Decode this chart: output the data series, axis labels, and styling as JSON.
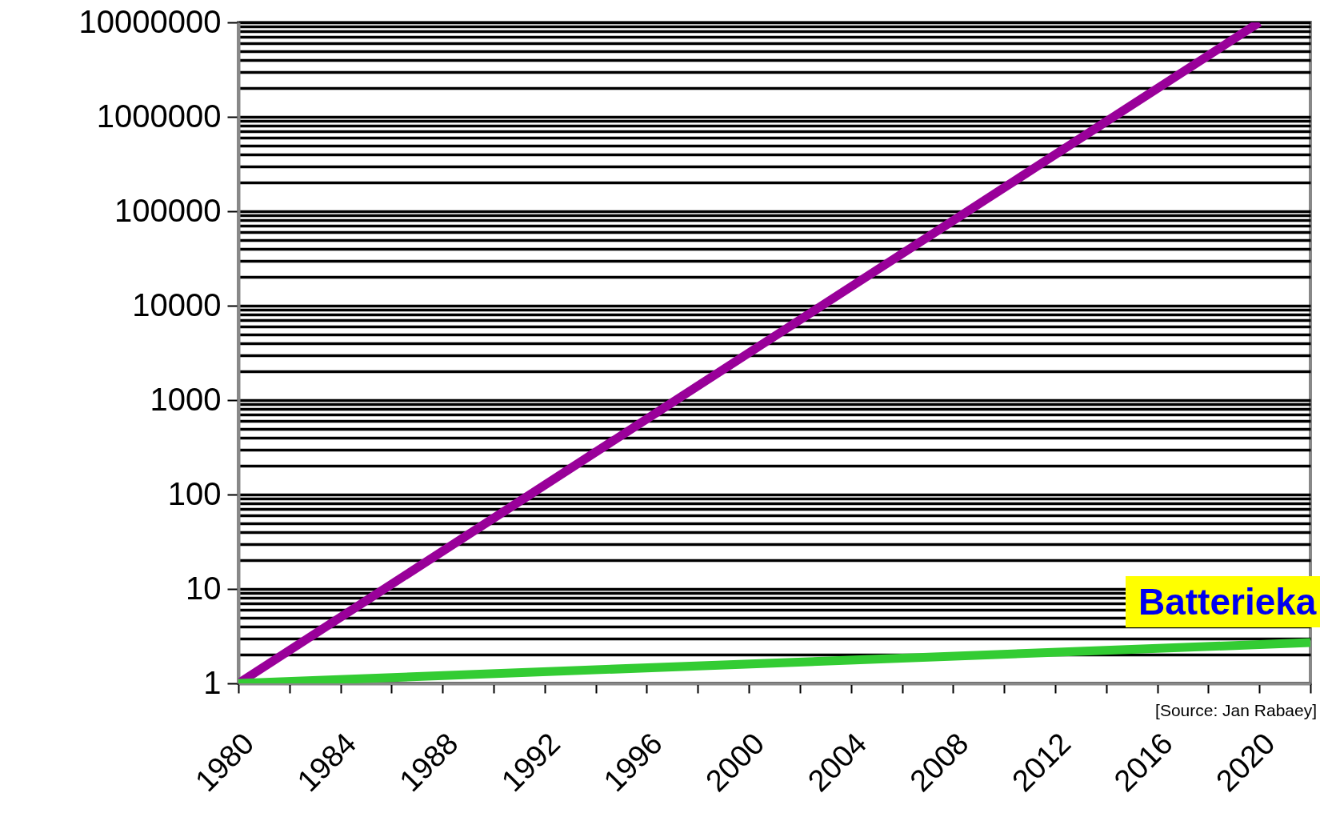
{
  "chart_data": {
    "type": "line",
    "log": "y",
    "grid": "y",
    "x": [
      1980,
      2020
    ],
    "series": [
      {
        "color": "#990099",
        "values": [
          1,
          10000000
        ]
      },
      {
        "name": "Batterieka",
        "color": "#33cc33",
        "x": [
          1980,
          2022
        ],
        "values": [
          1,
          2.7
        ]
      }
    ],
    "xlim": [
      1980,
      2022
    ],
    "xticks": [
      1980,
      {
        "value": 1982,
        "label": null
      },
      1984,
      {
        "value": 1986,
        "label": null
      },
      1988,
      {
        "value": 1990,
        "label": null
      },
      1992,
      {
        "value": 1994,
        "label": null
      },
      1996,
      {
        "value": 1998,
        "label": null
      },
      2000,
      {
        "value": 2002,
        "label": null
      },
      2004,
      {
        "value": 2006,
        "label": null
      },
      2008,
      {
        "value": 2010,
        "label": null
      },
      2012,
      {
        "value": 2014,
        "label": null
      },
      2016,
      {
        "value": 2018,
        "label": null
      },
      2020,
      {
        "value": 2022,
        "label": null
      }
    ],
    "ylim": [
      1,
      10000000
    ],
    "yticks": [
      1,
      {
        "value": 2,
        "label": null
      },
      {
        "value": 3,
        "label": null
      },
      {
        "value": 4,
        "label": null
      },
      {
        "value": 5,
        "label": null
      },
      {
        "value": 6,
        "label": null
      },
      {
        "value": 7,
        "label": null
      },
      {
        "value": 8,
        "label": null
      },
      {
        "value": 9,
        "label": null
      },
      10,
      {
        "value": 20,
        "label": null
      },
      {
        "value": 30,
        "label": null
      },
      {
        "value": 40,
        "label": null
      },
      {
        "value": 50,
        "label": null
      },
      {
        "value": 60,
        "label": null
      },
      {
        "value": 70,
        "label": null
      },
      {
        "value": 80,
        "label": null
      },
      {
        "value": 90,
        "label": null
      },
      100,
      {
        "value": 200,
        "label": null
      },
      {
        "value": 300,
        "label": null
      },
      {
        "value": 400,
        "label": null
      },
      {
        "value": 500,
        "label": null
      },
      {
        "value": 600,
        "label": null
      },
      {
        "value": 700,
        "label": null
      },
      {
        "value": 800,
        "label": null
      },
      {
        "value": 900,
        "label": null
      },
      1000,
      {
        "value": 2000,
        "label": null
      },
      {
        "value": 3000,
        "label": null
      },
      {
        "value": 4000,
        "label": null
      },
      {
        "value": 5000,
        "label": null
      },
      {
        "value": 6000,
        "label": null
      },
      {
        "value": 7000,
        "label": null
      },
      {
        "value": 8000,
        "label": null
      },
      {
        "value": 9000,
        "label": null
      },
      10000,
      {
        "value": 20000,
        "label": null
      },
      {
        "value": 30000,
        "label": null
      },
      {
        "value": 40000,
        "label": null
      },
      {
        "value": 50000,
        "label": null
      },
      {
        "value": 60000,
        "label": null
      },
      {
        "value": 70000,
        "label": null
      },
      {
        "value": 80000,
        "label": null
      },
      {
        "value": 90000,
        "label": null
      },
      100000,
      {
        "value": 200000,
        "label": null
      },
      {
        "value": 300000,
        "label": null
      },
      {
        "value": 400000,
        "label": null
      },
      {
        "value": 500000,
        "label": null
      },
      {
        "value": 600000,
        "label": null
      },
      {
        "value": 700000,
        "label": null
      },
      {
        "value": 800000,
        "label": null
      },
      {
        "value": 900000,
        "label": null
      },
      1000000,
      {
        "value": 2000000,
        "label": null
      },
      {
        "value": 3000000,
        "label": null
      },
      {
        "value": 4000000,
        "label": null
      },
      {
        "value": 5000000,
        "label": null
      },
      {
        "value": 6000000,
        "label": null
      },
      {
        "value": 7000000,
        "label": null
      },
      {
        "value": 8000000,
        "label": null
      },
      {
        "value": 9000000,
        "label": null
      },
      10000000
    ],
    "annotations": [
      "[Source: Jan Rabaey]"
    ]
  }
}
